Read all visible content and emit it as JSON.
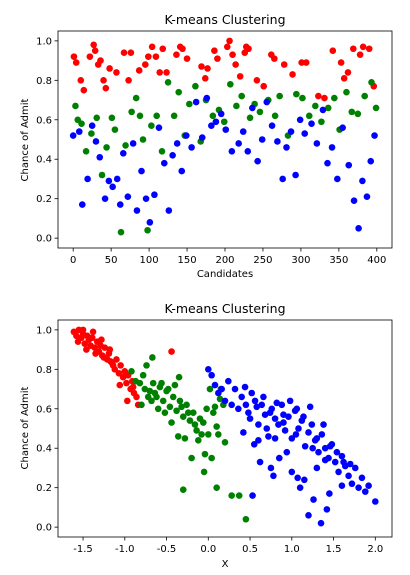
{
  "chart_data": [
    {
      "type": "scatter",
      "title": "K-means Clustering",
      "xlabel": "Candidates",
      "ylabel": "Chance of Admit",
      "xlim": [
        -20,
        420
      ],
      "ylim": [
        -0.05,
        1.05
      ],
      "xticks": [
        0,
        50,
        100,
        150,
        200,
        250,
        300,
        350,
        400
      ],
      "yticks": [
        0.0,
        0.2,
        0.4,
        0.6,
        0.8,
        1.0
      ],
      "xtick_labels": [
        "0",
        "50",
        "100",
        "150",
        "200",
        "250",
        "300",
        "350",
        "400"
      ],
      "ytick_labels": [
        "0.0",
        "0.2",
        "0.4",
        "0.6",
        "0.8",
        "1.0"
      ],
      "grid": false,
      "series": [
        {
          "color": "#ff0000",
          "x": [
            1,
            4,
            10,
            14,
            22,
            27,
            29,
            33,
            36,
            40,
            43,
            48,
            57,
            67,
            73,
            76,
            87,
            95,
            99,
            104,
            109,
            114,
            118,
            123,
            136,
            141,
            144,
            150,
            169,
            174,
            177,
            186,
            190,
            203,
            206,
            210,
            214,
            220,
            226,
            228,
            231,
            242,
            251,
            261,
            265,
            278,
            289,
            301,
            307,
            323,
            331,
            342,
            353,
            357,
            362,
            369,
            378,
            382,
            390,
            396
          ],
          "y": [
            0.92,
            0.89,
            0.8,
            0.75,
            0.92,
            0.98,
            0.95,
            0.88,
            0.9,
            0.8,
            0.76,
            0.86,
            0.84,
            0.94,
            0.8,
            0.94,
            0.85,
            0.88,
            0.92,
            0.97,
            0.92,
            0.84,
            0.96,
            0.84,
            0.93,
            0.97,
            0.96,
            0.91,
            0.87,
            0.81,
            0.86,
            0.95,
            0.91,
            0.97,
            1.0,
            0.93,
            0.88,
            0.82,
            0.94,
            0.97,
            0.96,
            0.8,
            0.77,
            0.93,
            0.91,
            0.88,
            0.83,
            0.89,
            0.89,
            0.72,
            0.71,
            0.95,
            0.89,
            0.81,
            0.84,
            0.96,
            0.93,
            0.97,
            0.96,
            0.77
          ]
        },
        {
          "color": "#008000",
          "x": [
            3,
            6,
            11,
            17,
            24,
            31,
            38,
            44,
            51,
            55,
            63,
            69,
            77,
            83,
            88,
            92,
            98,
            103,
            110,
            117,
            125,
            133,
            139,
            147,
            153,
            161,
            168,
            175,
            184,
            192,
            199,
            207,
            215,
            222,
            233,
            239,
            246,
            257,
            266,
            272,
            283,
            294,
            302,
            311,
            319,
            327,
            336,
            344,
            351,
            360,
            367,
            375,
            384,
            393,
            399
          ],
          "y": [
            0.67,
            0.6,
            0.58,
            0.44,
            0.53,
            0.61,
            0.32,
            0.46,
            0.61,
            0.55,
            0.03,
            0.47,
            0.64,
            0.71,
            0.62,
            0.5,
            0.04,
            0.57,
            0.62,
            0.44,
            0.79,
            0.62,
            0.74,
            0.52,
            0.68,
            0.77,
            0.49,
            0.7,
            0.62,
            0.65,
            0.59,
            0.78,
            0.67,
            0.72,
            0.61,
            0.68,
            0.64,
            0.7,
            0.62,
            0.72,
            0.52,
            0.73,
            0.71,
            0.62,
            0.67,
            0.59,
            0.66,
            0.71,
            0.55,
            0.74,
            0.64,
            0.63,
            0.72,
            0.79,
            0.66
          ]
        },
        {
          "color": "#0000ff",
          "x": [
            0,
            8,
            12,
            19,
            25,
            30,
            35,
            42,
            47,
            52,
            58,
            62,
            66,
            72,
            79,
            84,
            90,
            96,
            101,
            107,
            113,
            120,
            126,
            131,
            137,
            143,
            149,
            156,
            162,
            170,
            176,
            182,
            188,
            195,
            201,
            209,
            218,
            224,
            230,
            236,
            243,
            249,
            255,
            262,
            269,
            276,
            281,
            287,
            293,
            299,
            305,
            314,
            321,
            329,
            335,
            341,
            348,
            355,
            363,
            370,
            376,
            381,
            387,
            392,
            397
          ],
          "y": [
            0.52,
            0.54,
            0.17,
            0.3,
            0.57,
            0.49,
            0.41,
            0.2,
            0.29,
            0.26,
            0.3,
            0.17,
            0.43,
            0.21,
            0.48,
            0.14,
            0.34,
            0.2,
            0.08,
            0.22,
            0.56,
            0.38,
            0.14,
            0.42,
            0.48,
            0.34,
            0.52,
            0.46,
            0.69,
            0.51,
            0.71,
            0.57,
            0.59,
            0.63,
            0.55,
            0.44,
            0.48,
            0.54,
            0.44,
            0.66,
            0.39,
            0.5,
            0.69,
            0.57,
            0.49,
            0.3,
            0.46,
            0.54,
            0.32,
            0.6,
            0.53,
            0.58,
            0.48,
            0.65,
            0.38,
            0.46,
            0.3,
            0.56,
            0.37,
            0.19,
            0.05,
            0.29,
            0.21,
            0.39,
            0.52
          ]
        }
      ]
    },
    {
      "type": "scatter",
      "title": "K-means Clustering",
      "xlabel": "X",
      "ylabel": "Chance of Admit",
      "xlim": [
        -1.8,
        2.2
      ],
      "ylim": [
        -0.05,
        1.05
      ],
      "xticks": [
        -1.5,
        -1.0,
        -0.5,
        0.0,
        0.5,
        1.0,
        1.5,
        2.0
      ],
      "yticks": [
        0.0,
        0.2,
        0.4,
        0.6,
        0.8,
        1.0
      ],
      "xtick_labels": [
        "-1.5",
        "-1.0",
        "-0.5",
        "0.0",
        "0.5",
        "1.0",
        "1.5",
        "2.0"
      ],
      "ytick_labels": [
        "0.0",
        "0.2",
        "0.4",
        "0.6",
        "0.8",
        "1.0"
      ],
      "grid": false,
      "series": [
        {
          "color": "#ff0000",
          "x": [
            -1.61,
            -1.58,
            -1.55,
            -1.52,
            -1.5,
            -1.48,
            -1.45,
            -1.43,
            -1.41,
            -1.39,
            -1.36,
            -1.33,
            -1.31,
            -1.29,
            -1.27,
            -1.24,
            -1.21,
            -1.19,
            -1.17,
            -1.14,
            -1.12,
            -1.1,
            -1.07,
            -1.05,
            -1.02,
            -1.0,
            -0.98,
            -0.96,
            -0.93,
            -0.91,
            -0.89,
            -0.86,
            -0.84,
            -1.56,
            -1.46,
            -1.35,
            -1.25,
            -1.15,
            -1.06,
            -0.97,
            -0.9,
            -0.44,
            -1.5,
            -1.38,
            -1.28,
            -1.18
          ],
          "y": [
            0.99,
            0.97,
            1.0,
            0.96,
            0.98,
            0.93,
            0.97,
            0.95,
            0.92,
            0.96,
            0.91,
            0.94,
            0.89,
            0.92,
            0.87,
            0.91,
            0.85,
            0.88,
            0.84,
            0.82,
            0.8,
            0.85,
            0.78,
            0.82,
            0.76,
            0.79,
            0.73,
            0.77,
            0.7,
            0.74,
            0.68,
            0.66,
            0.62,
            0.94,
            0.9,
            0.88,
            0.86,
            0.83,
            0.72,
            0.64,
            0.71,
            0.89,
            1.0,
            0.99,
            0.95,
            0.9
          ]
        },
        {
          "color": "#008000",
          "x": [
            -0.92,
            -0.87,
            -0.82,
            -0.78,
            -0.74,
            -0.7,
            -0.66,
            -0.62,
            -0.58,
            -0.54,
            -0.5,
            -0.46,
            -0.42,
            -0.38,
            -0.34,
            -0.3,
            -0.26,
            -0.22,
            -0.18,
            -0.14,
            -0.1,
            -0.06,
            -0.02,
            0.02,
            0.06,
            0.1,
            0.14,
            0.18,
            -0.8,
            -0.72,
            -0.64,
            -0.56,
            -0.48,
            -0.4,
            -0.32,
            -0.24,
            -0.16,
            -0.08,
            0.0,
            0.08,
            0.15,
            -0.76,
            -0.68,
            -0.6,
            -0.52,
            -0.44,
            -0.36,
            -0.28,
            -0.2,
            -0.12,
            -0.04,
            0.04,
            0.12,
            0.2,
            -0.67,
            -0.35,
            0.37,
            0.45,
            -0.05,
            0.28,
            -0.3,
            0.1
          ],
          "y": [
            0.79,
            0.74,
            0.73,
            0.77,
            0.82,
            0.69,
            0.73,
            0.66,
            0.71,
            0.64,
            0.69,
            0.61,
            0.66,
            0.59,
            0.64,
            0.56,
            0.62,
            0.54,
            0.58,
            0.49,
            0.55,
            0.53,
            0.6,
            0.7,
            0.58,
            0.51,
            0.65,
            0.62,
            0.62,
            0.66,
            0.68,
            0.73,
            0.7,
            0.72,
            0.61,
            0.58,
            0.52,
            0.47,
            0.47,
            0.61,
            0.7,
            0.7,
            0.64,
            0.6,
            0.58,
            0.53,
            0.46,
            0.45,
            0.35,
            0.44,
            0.37,
            0.35,
            0.47,
            0.43,
            0.86,
            0.76,
            0.16,
            0.04,
            0.28,
            0.16,
            0.19,
            0.2
          ]
        },
        {
          "color": "#0000ff",
          "x": [
            0.0,
            0.04,
            0.08,
            0.12,
            0.16,
            0.2,
            0.24,
            0.28,
            0.32,
            0.36,
            0.4,
            0.44,
            0.48,
            0.52,
            0.56,
            0.6,
            0.64,
            0.68,
            0.72,
            0.76,
            0.8,
            0.84,
            0.88,
            0.92,
            0.96,
            1.0,
            1.04,
            1.08,
            1.12,
            1.16,
            1.2,
            1.24,
            1.28,
            1.32,
            1.36,
            1.4,
            1.44,
            1.48,
            1.52,
            1.56,
            1.6,
            1.64,
            1.68,
            1.72,
            1.76,
            1.8,
            1.84,
            1.88,
            1.92,
            2.0,
            0.42,
            0.5,
            0.58,
            0.66,
            0.74,
            0.82,
            0.9,
            0.98,
            1.06,
            1.14,
            1.22,
            1.3,
            1.38,
            1.46,
            1.54,
            1.62,
            0.55,
            0.7,
            0.85,
            1.0,
            1.15,
            1.3,
            1.45,
            1.6,
            0.62,
            0.78,
            0.94,
            1.1,
            1.26,
            1.42,
            0.45,
            0.6,
            0.75,
            0.9,
            1.05,
            1.2,
            1.35,
            0.53,
            0.8,
            1.07,
            1.25,
            1.4,
            1.7
          ],
          "y": [
            0.8,
            0.77,
            0.72,
            0.68,
            0.7,
            0.64,
            0.74,
            0.62,
            0.7,
            0.6,
            0.66,
            0.71,
            0.58,
            0.68,
            0.64,
            0.52,
            0.62,
            0.57,
            0.46,
            0.6,
            0.55,
            0.52,
            0.62,
            0.49,
            0.56,
            0.45,
            0.59,
            0.5,
            0.54,
            0.41,
            0.48,
            0.52,
            0.44,
            0.38,
            0.47,
            0.4,
            0.35,
            0.42,
            0.33,
            0.28,
            0.36,
            0.31,
            0.26,
            0.22,
            0.3,
            0.2,
            0.25,
            0.18,
            0.21,
            0.13,
            0.48,
            0.55,
            0.61,
            0.66,
            0.58,
            0.63,
            0.57,
            0.64,
            0.6,
            0.56,
            0.61,
            0.45,
            0.52,
            0.41,
            0.38,
            0.33,
            0.42,
            0.5,
            0.35,
            0.28,
            0.24,
            0.3,
            0.17,
            0.21,
            0.33,
            0.26,
            0.38,
            0.2,
            0.14,
            0.09,
            0.62,
            0.44,
            0.3,
            0.53,
            0.47,
            0.06,
            0.02,
            0.16,
            0.45,
            0.25,
            0.4,
            0.34,
            0.32
          ]
        }
      ]
    }
  ]
}
